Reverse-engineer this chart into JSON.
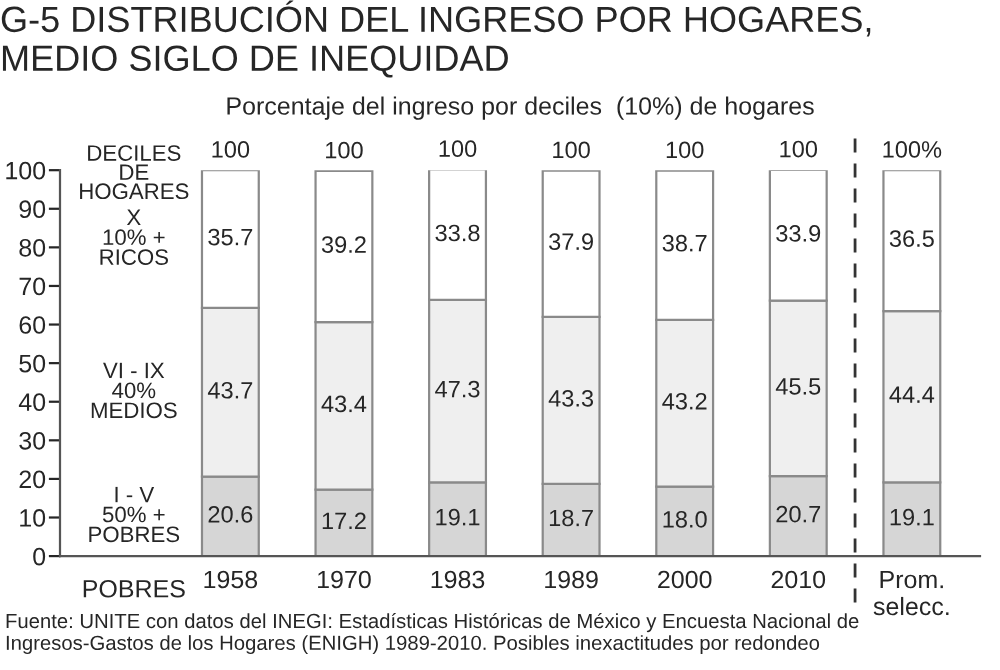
{
  "chart_data": {
    "type": "bar",
    "stacked": true,
    "title": "G-5 DISTRIBUCIÓN DEL INGRESO POR HOGARES, MEDIO SIGLO DE INEQUIDAD",
    "subtitle": "Porcentaje del ingreso por deciles  (10%) de hogares",
    "legend_title": "DECILES DE HOGARES",
    "categories": [
      "1958",
      "1970",
      "1983",
      "1989",
      "2000",
      "2010",
      "Prom.\nselecc."
    ],
    "series": [
      {
        "name": "I - V\n50% +\nPOBRES",
        "color": "#d6d6d6",
        "values": [
          20.6,
          17.2,
          19.1,
          18.7,
          18.0,
          20.7,
          19.1
        ],
        "value_labels": [
          "20.6",
          "17.2",
          "19.1",
          "18.7",
          "18.0",
          "20.7",
          "19.1"
        ]
      },
      {
        "name": "VI - IX\n40%\nMEDIOS",
        "color": "#efefef",
        "values": [
          43.7,
          43.4,
          47.3,
          43.3,
          43.2,
          45.5,
          44.4
        ],
        "value_labels": [
          "43.7",
          "43.4",
          "47.3",
          "43.3",
          "43.2",
          "45.5",
          "44.4"
        ]
      },
      {
        "name": "X\n10% +\nRICOS",
        "color": "#ffffff",
        "values": [
          35.7,
          39.2,
          33.8,
          37.9,
          38.7,
          33.9,
          36.5
        ],
        "value_labels": [
          "35.7",
          "39.2",
          "33.8",
          "37.9",
          "38.7",
          "33.9",
          "36.5"
        ]
      }
    ],
    "totals": [
      "100",
      "100",
      "100",
      "100",
      "100",
      "100",
      "100%"
    ],
    "ylim": [
      0,
      100
    ],
    "yticks": [
      0,
      10,
      20,
      30,
      40,
      50,
      60,
      70,
      80,
      90,
      100
    ],
    "legend": "left",
    "grid": false,
    "annotations": [
      "POBRES",
      "Fuente: UNITE con datos del INEGI: Estadísticas Históricas de México y Encuesta Nacional de Ingresos-Gastos de los Hogares (ENIGH) 1989-2010. Posibles inexactitudes por redondeo"
    ]
  }
}
